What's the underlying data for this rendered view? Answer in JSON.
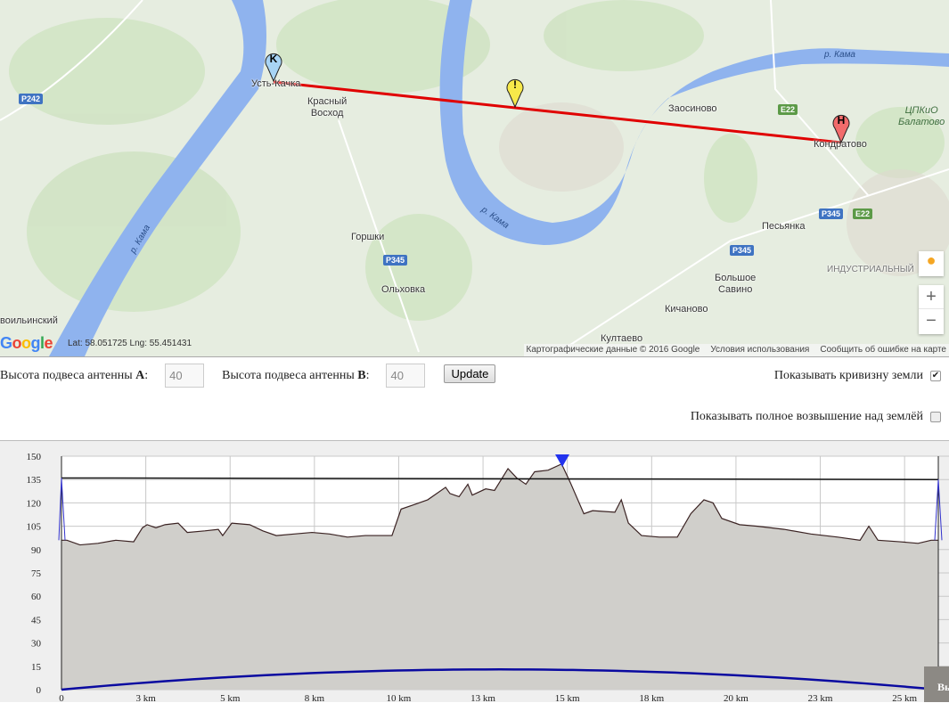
{
  "map": {
    "labels": {
      "ust_kachka": "Усть-Качка",
      "krasny_voskhod": "Красный\nВосход",
      "gorshki": "Горшки",
      "olkhovka": "Ольховка",
      "novoilinsky": "воильинский",
      "kultaevo": "Култаево",
      "zaosinovo": "Заосиново",
      "kondratovo": "Кондратово",
      "tspkio": "ЦПКиО\nБалатово",
      "pesyanka": "Песьянка",
      "industrialny": "ИНДУСТРИАЛЬНЫЙ",
      "bolshoe_savino": "Большое\nСавино",
      "kichanovo": "Кичаново",
      "river1": "р. Кама",
      "river2": "р. Кама",
      "river3": "р. Кама"
    },
    "shields": {
      "p242": "P242",
      "p345a": "P345",
      "p345b": "P345",
      "p345c": "P345",
      "e22a": "E22",
      "e22b": "E22"
    },
    "markers": {
      "a": "K",
      "b": "H",
      "obstacle": "!"
    },
    "marker_colors": {
      "a": "#a8d4f5",
      "b": "#f26b6b",
      "obstacle": "#f7e94a"
    },
    "path_color": "#e00000",
    "logo": "Google",
    "coords": "Lat: 58.051725 Lng: 55.451431",
    "attribution": [
      "Картографические данные © 2016 Google",
      "Условия использования",
      "Сообщить об ошибке на карте"
    ],
    "zoom_in": "+",
    "zoom_out": "−"
  },
  "form": {
    "antenna_a_label": "Высота подвеса антенны ",
    "antenna_a_letter": "A",
    "antenna_a_value": "40",
    "antenna_b_label": "Высота подвеса антенны ",
    "antenna_b_letter": "B",
    "antenna_b_value": "40",
    "colon": ":",
    "update": "Update",
    "curvature_label": "Показывать кривизну земли",
    "curvature_checked": true,
    "full_elevation_label": "Показывать полное возвышение над землёй",
    "full_elevation_checked": false
  },
  "exit_button": "Вы",
  "chart_data": {
    "type": "area",
    "xlim": [
      0,
      26
    ],
    "ylim": [
      0,
      150
    ],
    "x_ticks": [
      0,
      2.5,
      5,
      7.5,
      10,
      12.5,
      15,
      17.5,
      20,
      22.5,
      25
    ],
    "x_tick_labels": [
      "0",
      "3 km",
      "5 km",
      "8 km",
      "10 km",
      "13 km",
      "15 km",
      "18 km",
      "20 km",
      "23 km",
      "25 km"
    ],
    "y_ticks": [
      0,
      15,
      30,
      45,
      60,
      75,
      90,
      105,
      120,
      135,
      150
    ],
    "grid": true,
    "terrain": [
      [
        0,
        96
      ],
      [
        0.16,
        96
      ],
      [
        0.55,
        93
      ],
      [
        1.08,
        94
      ],
      [
        1.61,
        96
      ],
      [
        2.14,
        95
      ],
      [
        2.4,
        104
      ],
      [
        2.54,
        106
      ],
      [
        2.8,
        104
      ],
      [
        3.07,
        106
      ],
      [
        3.46,
        107
      ],
      [
        3.73,
        101
      ],
      [
        4.25,
        102
      ],
      [
        4.65,
        103
      ],
      [
        4.78,
        99
      ],
      [
        5.05,
        107
      ],
      [
        5.58,
        106
      ],
      [
        5.97,
        102
      ],
      [
        6.37,
        99
      ],
      [
        6.9,
        100
      ],
      [
        7.43,
        101
      ],
      [
        7.95,
        100
      ],
      [
        8.48,
        98
      ],
      [
        9.01,
        99
      ],
      [
        9.8,
        99
      ],
      [
        10.07,
        116
      ],
      [
        10.47,
        119
      ],
      [
        10.86,
        122
      ],
      [
        11.39,
        130
      ],
      [
        11.52,
        126
      ],
      [
        11.79,
        124
      ],
      [
        12.05,
        132
      ],
      [
        12.18,
        125
      ],
      [
        12.58,
        129
      ],
      [
        12.84,
        128
      ],
      [
        13.24,
        142
      ],
      [
        13.5,
        136
      ],
      [
        13.77,
        132
      ],
      [
        14.03,
        140
      ],
      [
        14.43,
        141
      ],
      [
        14.83,
        145
      ],
      [
        15.09,
        133
      ],
      [
        15.49,
        113
      ],
      [
        15.75,
        115
      ],
      [
        16.41,
        114
      ],
      [
        16.6,
        122
      ],
      [
        16.81,
        107
      ],
      [
        17.2,
        99
      ],
      [
        17.73,
        98
      ],
      [
        18.26,
        98
      ],
      [
        18.66,
        113
      ],
      [
        19.05,
        122
      ],
      [
        19.32,
        120
      ],
      [
        19.58,
        110
      ],
      [
        20.11,
        106
      ],
      [
        20.64,
        105
      ],
      [
        21.43,
        103
      ],
      [
        22.22,
        100
      ],
      [
        23.02,
        98
      ],
      [
        23.68,
        96
      ],
      [
        23.94,
        105
      ],
      [
        24.21,
        96
      ],
      [
        24.87,
        95
      ],
      [
        25.4,
        94
      ],
      [
        25.79,
        96
      ],
      [
        26,
        96
      ]
    ],
    "line_of_sight": [
      [
        0,
        136
      ],
      [
        26,
        135
      ]
    ],
    "earth_curvature_max": 13,
    "obstruction_km": 14.85,
    "colors": {
      "terrain_fill": "#d0cfcb",
      "terrain_line": "#3a2222",
      "los": "#111111",
      "antenna": "#3333cc",
      "curvature": "#0a0aa0",
      "marker": "#2233ee"
    }
  }
}
